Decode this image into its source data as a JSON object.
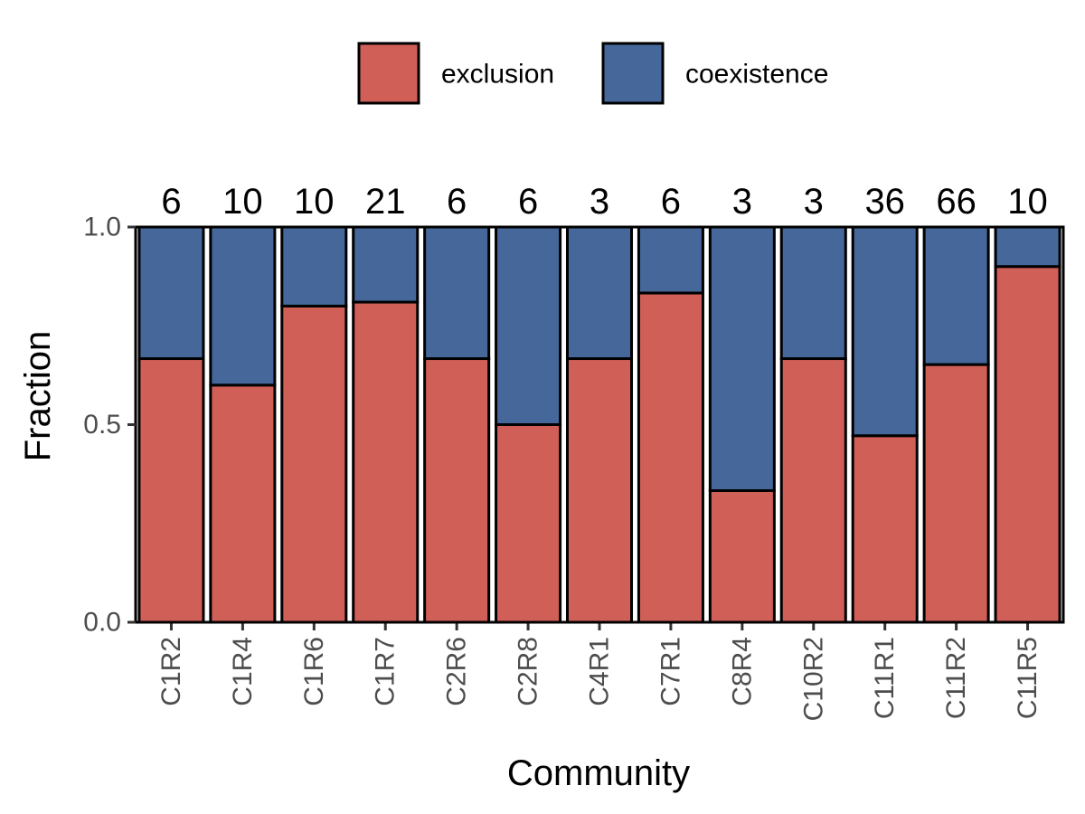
{
  "chart_data": {
    "type": "bar",
    "stacked": true,
    "categories": [
      "C1R2",
      "C1R4",
      "C1R6",
      "C1R7",
      "C2R6",
      "C2R8",
      "C4R1",
      "C7R1",
      "C8R4",
      "C10R2",
      "C11R1",
      "C11R2",
      "C11R5"
    ],
    "counts": [
      "6",
      "10",
      "10",
      "21",
      "6",
      "6",
      "3",
      "6",
      "3",
      "3",
      "36",
      "66",
      "10"
    ],
    "series": [
      {
        "name": "exclusion",
        "color": "#D05F58",
        "values": [
          0.667,
          0.6,
          0.8,
          0.81,
          0.667,
          0.5,
          0.667,
          0.833,
          0.333,
          0.667,
          0.472,
          0.652,
          0.9
        ]
      },
      {
        "name": "coexistence",
        "color": "#45679A",
        "values": [
          0.333,
          0.4,
          0.2,
          0.19,
          0.333,
          0.5,
          0.333,
          0.167,
          0.667,
          0.333,
          0.528,
          0.348,
          0.1
        ]
      }
    ],
    "xlabel": "Community",
    "ylabel": "Fraction",
    "ylim": [
      0,
      1
    ],
    "yticks": [
      "0.0",
      "0.5",
      "1.0"
    ],
    "legend_position": "top",
    "grid": false
  }
}
